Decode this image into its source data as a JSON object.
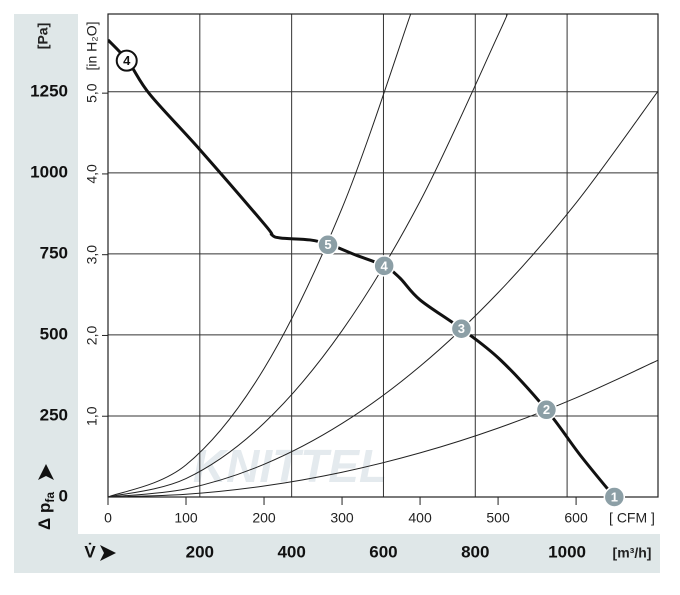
{
  "chart_data": {
    "type": "line",
    "x_label": "[ CFM ]",
    "x2_label": "[m³/h]",
    "y_label": "[Pa]",
    "y2_label": "[in H₂O]",
    "axis_title_y": {
      "text": "Δ p",
      "sub": "fa"
    },
    "axis_title_x": "V̇",
    "watermark": "KNITTEL",
    "xlim": [
      0,
      705
    ],
    "xticks": [
      0,
      100,
      200,
      300,
      400,
      500,
      600
    ],
    "x2lim": [
      0,
      1198
    ],
    "x2ticks": [
      200,
      400,
      600,
      800,
      1000
    ],
    "ylim": [
      0,
      1490
    ],
    "yticks": [
      0,
      250,
      500,
      750,
      1000,
      1250
    ],
    "y2lim": [
      0,
      5.98
    ],
    "y2ticks": [
      {
        "value": 1,
        "label": "1,0"
      },
      {
        "value": 2,
        "label": "2,0"
      },
      {
        "value": 3,
        "label": "3,0"
      },
      {
        "value": 4,
        "label": "4,0"
      },
      {
        "value": 5,
        "label": "5,0"
      }
    ],
    "grid": true,
    "series": [
      {
        "color": "#111111",
        "width": 3,
        "x": [
          0,
          26,
          54,
          118,
          201,
          210,
          221,
          259,
          285,
          317,
          354,
          374,
          400,
          453,
          503,
          562,
          605,
          649
        ],
        "values": [
          1410,
          1343,
          1241,
          1071,
          840,
          809,
          799,
          793,
          778,
          747,
          713,
          676,
          608,
          519,
          423,
          269,
          130,
          0
        ]
      },
      {
        "color": "#222222",
        "width": 1,
        "x": [
          0,
          100,
          200,
          300,
          400,
          500,
          600,
          705
        ],
        "values": [
          0,
          8.5,
          34,
          76.5,
          136,
          212.5,
          306,
          422
        ]
      },
      {
        "color": "#222222",
        "width": 1,
        "x": [
          0,
          100,
          200,
          300,
          400,
          500,
          600,
          705
        ],
        "values": [
          0,
          25.2,
          100.8,
          226.8,
          403.2,
          630,
          907.2,
          1252
        ]
      },
      {
        "color": "#222222",
        "width": 1,
        "x": [
          0,
          100,
          200,
          300,
          400,
          500,
          511
        ],
        "values": [
          0,
          57,
          228,
          513,
          912,
          1425,
          1488
        ]
      },
      {
        "color": "#222222",
        "width": 1,
        "x": [
          0,
          100,
          200,
          300,
          388
        ],
        "values": [
          0,
          99,
          396,
          891,
          1490
        ]
      }
    ],
    "points": [
      {
        "label": "5",
        "x": 282,
        "y": 778
      },
      {
        "label": "4",
        "x": 354,
        "y": 713
      },
      {
        "label": "3",
        "x": 453,
        "y": 519
      },
      {
        "label": "2",
        "x": 562,
        "y": 269
      },
      {
        "label": "1",
        "x": 649,
        "y": 0
      }
    ],
    "points_color": "#8c9fa6",
    "start_marker": {
      "label": "4",
      "x": 24,
      "y": 1346
    }
  }
}
